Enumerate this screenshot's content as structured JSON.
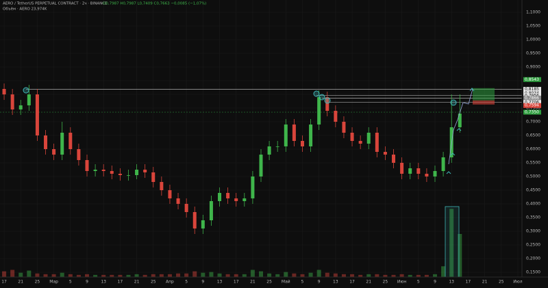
{
  "chart_data": {
    "type": "candlestick",
    "title": "AERO / TetherUS PERPETUAL CONTRACT · 2ч · BINANCE",
    "ohlc_text": "O0,7987 H0,7987 L0,7409 C0,7663 −0,0085 (−1,07%)",
    "subtitle": "Объём · AERO 23,974K",
    "up_color": "#3fb54b",
    "down_color": "#d9453b",
    "grid": true,
    "xlim": [
      -0.25,
      31.25
    ],
    "ylim": [
      0.14,
      1.12
    ],
    "xticks": [
      {
        "value": 0,
        "label": "17"
      },
      {
        "value": 1,
        "label": "21"
      },
      {
        "value": 2,
        "label": "25"
      },
      {
        "value": 3,
        "label": "Мар"
      },
      {
        "value": 4,
        "label": "5"
      },
      {
        "value": 5,
        "label": "9"
      },
      {
        "value": 6,
        "label": "13"
      },
      {
        "value": 7,
        "label": "17"
      },
      {
        "value": 8,
        "label": "21"
      },
      {
        "value": 9,
        "label": "25"
      },
      {
        "value": 10,
        "label": "Апр"
      },
      {
        "value": 11,
        "label": "5"
      },
      {
        "value": 12,
        "label": "9"
      },
      {
        "value": 13,
        "label": "13"
      },
      {
        "value": 14,
        "label": "17"
      },
      {
        "value": 15,
        "label": "21"
      },
      {
        "value": 16,
        "label": "25"
      },
      {
        "value": 17,
        "label": "Май"
      },
      {
        "value": 18,
        "label": "5"
      },
      {
        "value": 19,
        "label": "9"
      },
      {
        "value": 20,
        "label": "13"
      },
      {
        "value": 21,
        "label": "17"
      },
      {
        "value": 22,
        "label": "21"
      },
      {
        "value": 23,
        "label": "25"
      },
      {
        "value": 24,
        "label": "Июн"
      },
      {
        "value": 25,
        "label": "5"
      },
      {
        "value": 26,
        "label": "9"
      },
      {
        "value": 27,
        "label": "13"
      },
      {
        "value": 28,
        "label": "17"
      },
      {
        "value": 29,
        "label": "21"
      },
      {
        "value": 30,
        "label": "25"
      },
      {
        "value": 31,
        "label": "Июл"
      }
    ],
    "yticks": [
      {
        "value": 0.15,
        "label": "0,1500"
      },
      {
        "value": 0.2,
        "label": "0,2000"
      },
      {
        "value": 0.25,
        "label": "0,2500"
      },
      {
        "value": 0.3,
        "label": "0,3000"
      },
      {
        "value": 0.35,
        "label": "0,3500"
      },
      {
        "value": 0.4,
        "label": "0,4000"
      },
      {
        "value": 0.45,
        "label": "0,4500"
      },
      {
        "value": 0.5,
        "label": "0,5000"
      },
      {
        "value": 0.55,
        "label": "0,5500"
      },
      {
        "value": 0.6,
        "label": "0,6000"
      },
      {
        "value": 0.65,
        "label": "0,6500"
      },
      {
        "value": 0.7,
        "label": "0,7000"
      },
      {
        "value": 0.75,
        "label": "0,7500"
      },
      {
        "value": 0.8,
        "label": "0,8000"
      },
      {
        "value": 0.85,
        "label": "0,8500"
      },
      {
        "value": 0.9,
        "label": "0,9000"
      },
      {
        "value": 0.95,
        "label": "0,9500"
      },
      {
        "value": 1.0,
        "label": "1,0000"
      },
      {
        "value": 1.05,
        "label": "1,0500"
      },
      {
        "value": 1.1,
        "label": "1,1000"
      }
    ],
    "x": [
      0,
      0.5,
      1,
      1.5,
      2,
      2.5,
      3,
      3.5,
      4,
      4.5,
      5,
      5.5,
      6,
      6.5,
      7,
      7.5,
      8,
      8.5,
      9,
      9.5,
      10,
      10.5,
      11,
      11.5,
      12,
      12.5,
      13,
      13.5,
      14,
      14.5,
      15,
      15.5,
      16,
      16.5,
      17,
      17.5,
      18,
      18.5,
      19,
      19.5,
      20,
      20.5,
      21,
      21.5,
      22,
      22.5,
      23,
      23.5,
      24,
      24.5,
      25,
      25.5,
      26,
      26.5,
      27,
      27.5
    ],
    "candles": [
      [
        0.82,
        0.84,
        0.78,
        0.8
      ],
      [
        0.8,
        0.82,
        0.725,
        0.745
      ],
      [
        0.745,
        0.78,
        0.725,
        0.76
      ],
      [
        0.76,
        0.835,
        0.74,
        0.8
      ],
      [
        0.8,
        0.82,
        0.63,
        0.65
      ],
      [
        0.65,
        0.67,
        0.58,
        0.6
      ],
      [
        0.6,
        0.62,
        0.56,
        0.58
      ],
      [
        0.58,
        0.7,
        0.56,
        0.66
      ],
      [
        0.66,
        0.68,
        0.58,
        0.6
      ],
      [
        0.6,
        0.62,
        0.54,
        0.56
      ],
      [
        0.56,
        0.58,
        0.5,
        0.52
      ],
      [
        0.52,
        0.545,
        0.5,
        0.525
      ],
      [
        0.525,
        0.545,
        0.5,
        0.52
      ],
      [
        0.52,
        0.54,
        0.49,
        0.51
      ],
      [
        0.51,
        0.53,
        0.485,
        0.505
      ],
      [
        0.505,
        0.525,
        0.485,
        0.505
      ],
      [
        0.505,
        0.545,
        0.49,
        0.525
      ],
      [
        0.525,
        0.545,
        0.495,
        0.515
      ],
      [
        0.515,
        0.535,
        0.46,
        0.48
      ],
      [
        0.48,
        0.5,
        0.43,
        0.45
      ],
      [
        0.45,
        0.47,
        0.4,
        0.42
      ],
      [
        0.42,
        0.44,
        0.38,
        0.4
      ],
      [
        0.4,
        0.42,
        0.35,
        0.37
      ],
      [
        0.37,
        0.39,
        0.29,
        0.31
      ],
      [
        0.31,
        0.36,
        0.29,
        0.34
      ],
      [
        0.34,
        0.43,
        0.32,
        0.41
      ],
      [
        0.41,
        0.46,
        0.39,
        0.44
      ],
      [
        0.44,
        0.46,
        0.4,
        0.42
      ],
      [
        0.42,
        0.44,
        0.39,
        0.41
      ],
      [
        0.41,
        0.44,
        0.39,
        0.42
      ],
      [
        0.42,
        0.52,
        0.4,
        0.5
      ],
      [
        0.5,
        0.6,
        0.48,
        0.58
      ],
      [
        0.58,
        0.63,
        0.56,
        0.61
      ],
      [
        0.61,
        0.63,
        0.59,
        0.61
      ],
      [
        0.61,
        0.71,
        0.59,
        0.69
      ],
      [
        0.69,
        0.71,
        0.61,
        0.63
      ],
      [
        0.63,
        0.65,
        0.59,
        0.61
      ],
      [
        0.61,
        0.71,
        0.59,
        0.69
      ],
      [
        0.69,
        0.815,
        0.67,
        0.79
      ],
      [
        0.79,
        0.81,
        0.72,
        0.74
      ],
      [
        0.74,
        0.76,
        0.68,
        0.7
      ],
      [
        0.7,
        0.72,
        0.64,
        0.66
      ],
      [
        0.66,
        0.68,
        0.61,
        0.63
      ],
      [
        0.63,
        0.65,
        0.6,
        0.62
      ],
      [
        0.62,
        0.68,
        0.6,
        0.66
      ],
      [
        0.66,
        0.68,
        0.57,
        0.59
      ],
      [
        0.59,
        0.61,
        0.56,
        0.58
      ],
      [
        0.58,
        0.6,
        0.53,
        0.55
      ],
      [
        0.55,
        0.57,
        0.49,
        0.51
      ],
      [
        0.51,
        0.55,
        0.49,
        0.53
      ],
      [
        0.53,
        0.55,
        0.49,
        0.51
      ],
      [
        0.51,
        0.53,
        0.48,
        0.5
      ],
      [
        0.5,
        0.54,
        0.48,
        0.52
      ],
      [
        0.52,
        0.59,
        0.5,
        0.57
      ],
      [
        0.57,
        0.8,
        0.55,
        0.68
      ],
      [
        0.68,
        0.8,
        0.66,
        0.73
      ]
    ],
    "volume": [
      8,
      10,
      6,
      9,
      5,
      4,
      4,
      6,
      4,
      3,
      4,
      3,
      3,
      3,
      3,
      3,
      4,
      3,
      4,
      4,
      4,
      5,
      5,
      8,
      6,
      7,
      5,
      4,
      4,
      4,
      10,
      8,
      5,
      4,
      7,
      5,
      4,
      6,
      10,
      6,
      5,
      4,
      4,
      3,
      4,
      4,
      3,
      3,
      4,
      3,
      3,
      3,
      4,
      15,
      95,
      60
    ],
    "volume_lim": [
      0,
      100
    ],
    "levels": [
      {
        "value": 0.8543,
        "label": "0,8543",
        "color": "#2e9d3e"
      },
      {
        "value": 0.8185,
        "label": "0,8185",
        "color": "#e6e6e6"
      },
      {
        "value": 0.8034,
        "label": "0,8034",
        "color": "#e6e6e6"
      },
      {
        "value": 0.7956,
        "label": "0,7956",
        "color": "#e6e6e6"
      },
      {
        "value": 0.7866,
        "label": "0,7866",
        "color": "#8a8a8a"
      },
      {
        "value": 0.7706,
        "label": "0,7706",
        "color": "#e6e6e6"
      },
      {
        "value": 0.7594,
        "label": "0,7594",
        "color": "#d9453b"
      },
      {
        "value": 0.735,
        "label": "0,7350",
        "color": "#2e9d3e"
      }
    ],
    "position": {
      "target": 0.823,
      "entry": 0.778,
      "stop": 0.763
    }
  }
}
